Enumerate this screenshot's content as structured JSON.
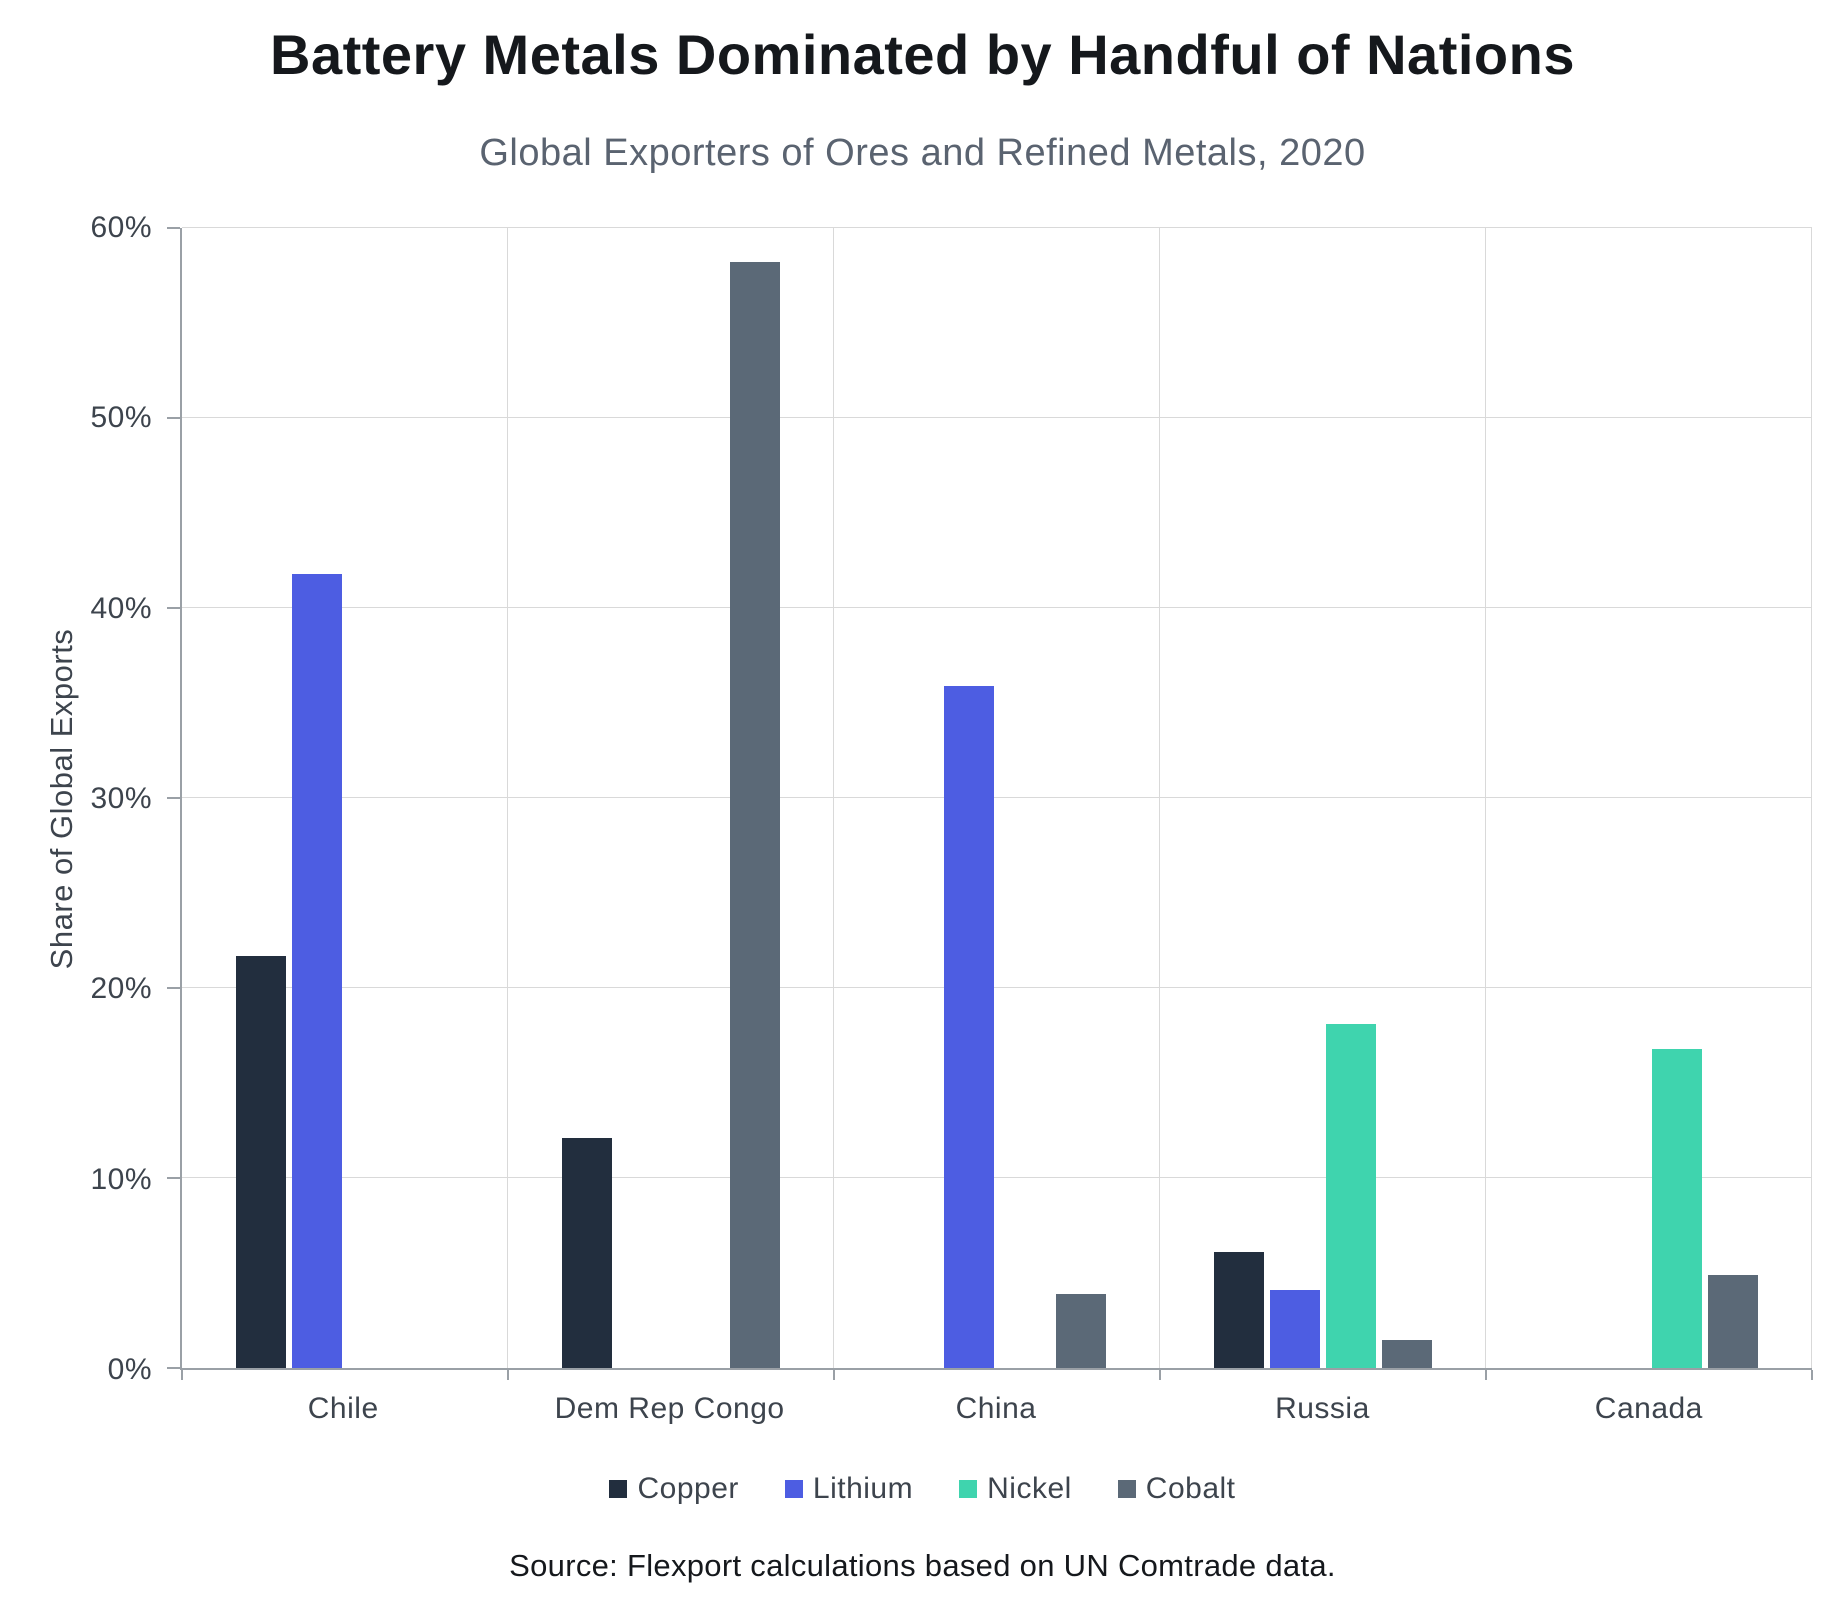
{
  "title": "Battery Metals Dominated by Handful of Nations",
  "subtitle": "Global Exporters of Ores and Refined Metals, 2020",
  "source": "Source: Flexport calculations based on UN Comtrade data.",
  "colors": {
    "copper": "#222e3e",
    "lithium": "#4d5de2",
    "nickel": "#3fd4ae",
    "cobalt": "#5b6977",
    "gridline": "#d9d9d9",
    "axis": "#9aa0a6"
  },
  "chart_data": {
    "type": "bar",
    "title": "Battery Metals Dominated by Handful of Nations",
    "subtitle": "Global Exporters of Ores and Refined Metals, 2020",
    "ylabel": "Share of Global Exports",
    "xlabel": "",
    "ylim": [
      0,
      60
    ],
    "ytick_step": 10,
    "ytick_suffix": "%",
    "grid": true,
    "legend_position": "bottom",
    "categories": [
      "Chile",
      "Dem Rep Congo",
      "China",
      "Russia",
      "Canada"
    ],
    "series": [
      {
        "name": "Copper",
        "color": "#222e3e",
        "values": [
          21.7,
          12.1,
          0,
          6.1,
          0
        ]
      },
      {
        "name": "Lithium",
        "color": "#4d5de2",
        "values": [
          41.8,
          0,
          35.9,
          4.1,
          0
        ]
      },
      {
        "name": "Nickel",
        "color": "#3fd4ae",
        "values": [
          0,
          0,
          0,
          18.1,
          16.8
        ]
      },
      {
        "name": "Cobalt",
        "color": "#5b6977",
        "values": [
          0,
          58.2,
          3.9,
          1.5,
          4.9
        ]
      }
    ]
  }
}
